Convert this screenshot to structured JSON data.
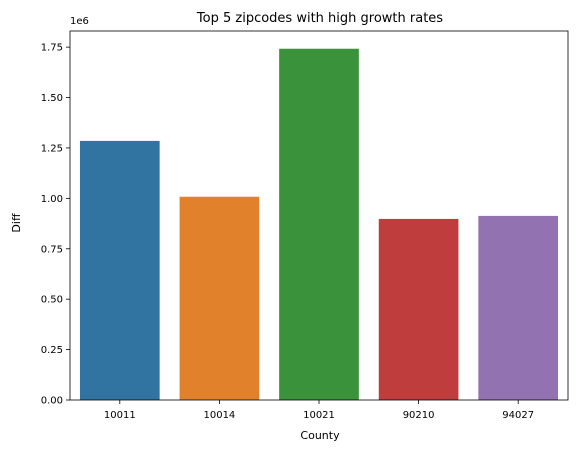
{
  "chart_data": {
    "type": "bar",
    "title": "Top 5 zipcodes with high growth rates",
    "xlabel": "County",
    "ylabel": "Diff",
    "offset_label": "1e6",
    "categories": [
      "10011",
      "10014",
      "10021",
      "90210",
      "94027"
    ],
    "values": [
      1285000,
      1008000,
      1742000,
      898000,
      913000
    ],
    "colors": [
      "#3274a1",
      "#e1812c",
      "#3a923a",
      "#c03d3e",
      "#9372b2"
    ],
    "ylim": [
      0,
      1830000
    ],
    "yticks": [
      0,
      250000,
      500000,
      750000,
      1000000,
      1250000,
      1500000,
      1750000
    ],
    "ytick_labels": [
      "0.00",
      "0.25",
      "0.50",
      "0.75",
      "1.00",
      "1.25",
      "1.50",
      "1.75"
    ],
    "grid": false,
    "legend": "none"
  }
}
